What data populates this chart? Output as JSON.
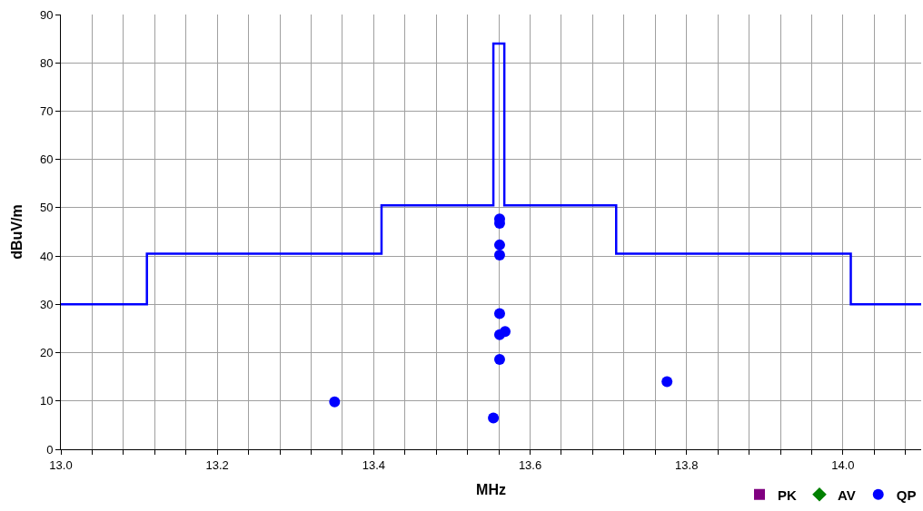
{
  "chart_data": {
    "type": "scatter",
    "xlabel": "MHz",
    "ylabel": "dBuV/m",
    "xlim": [
      13.0,
      14.1
    ],
    "ylim": [
      0,
      90
    ],
    "xticks": [
      {
        "value": 13.0,
        "label": "13.0"
      },
      {
        "value": 13.04,
        "label": null
      },
      {
        "value": 13.08,
        "label": null
      },
      {
        "value": 13.12,
        "label": null
      },
      {
        "value": 13.16,
        "label": null
      },
      {
        "value": 13.2,
        "label": "13.2"
      },
      {
        "value": 13.24,
        "label": null
      },
      {
        "value": 13.28,
        "label": null
      },
      {
        "value": 13.32,
        "label": null
      },
      {
        "value": 13.36,
        "label": null
      },
      {
        "value": 13.4,
        "label": "13.4"
      },
      {
        "value": 13.44,
        "label": null
      },
      {
        "value": 13.48,
        "label": null
      },
      {
        "value": 13.52,
        "label": null
      },
      {
        "value": 13.56,
        "label": null
      },
      {
        "value": 13.6,
        "label": "13.6"
      },
      {
        "value": 13.64,
        "label": null
      },
      {
        "value": 13.68,
        "label": null
      },
      {
        "value": 13.72,
        "label": null
      },
      {
        "value": 13.76,
        "label": null
      },
      {
        "value": 13.8,
        "label": "13.8"
      },
      {
        "value": 13.84,
        "label": null
      },
      {
        "value": 13.88,
        "label": null
      },
      {
        "value": 13.92,
        "label": null
      },
      {
        "value": 13.96,
        "label": null
      },
      {
        "value": 14.0,
        "label": "14.0"
      },
      {
        "value": 14.04,
        "label": null
      },
      {
        "value": 14.08,
        "label": null
      }
    ],
    "yticks": [
      0,
      10,
      20,
      30,
      40,
      50,
      60,
      70,
      80,
      90
    ],
    "grid": true,
    "legend": "bottom right",
    "series": [
      {
        "type": "step",
        "color": "#0000ff",
        "marker": "none",
        "x": [
          13.0,
          13.11,
          13.41,
          13.553,
          13.567,
          13.71,
          14.01,
          14.1
        ],
        "values": [
          30,
          40.5,
          50.5,
          84,
          50.5,
          40.5,
          30,
          30
        ]
      },
      {
        "name": "PK",
        "color": "#800080",
        "marker": "square"
      },
      {
        "name": "AV",
        "color": "#008000",
        "marker": "diamond"
      },
      {
        "name": "QP",
        "color": "#0000ff",
        "marker": "circle",
        "x": [
          13.35,
          13.553,
          13.561,
          13.561,
          13.561,
          13.561,
          13.561,
          13.561,
          13.568,
          13.561,
          13.775
        ],
        "values": [
          9.8,
          6.5,
          47.7,
          46.8,
          42.3,
          40.2,
          28.1,
          23.7,
          24.4,
          18.6,
          14.0
        ]
      }
    ]
  }
}
